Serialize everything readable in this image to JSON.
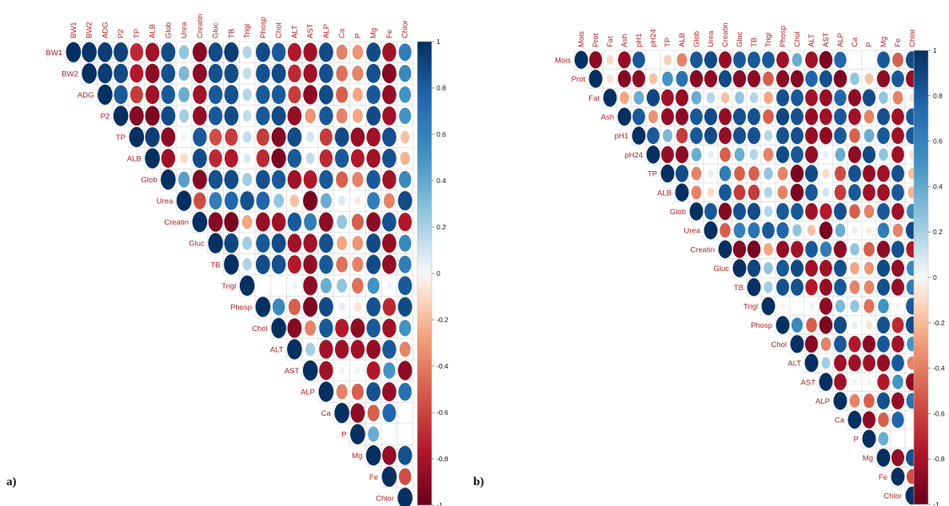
{
  "colors": {
    "negative": "#67001f",
    "neutral": "#ffffff",
    "positive": "#053061",
    "label": "#b22222"
  },
  "chart_data": [
    {
      "type": "heatmap",
      "panel_label": "a)",
      "variables": [
        "BW1",
        "BW2",
        "ADG",
        "P2",
        "TP",
        "ALB",
        "Glob",
        "Urea",
        "Creatin",
        "Gluc",
        "TB",
        "Trigl",
        "Phosp",
        "Chol",
        "ALT",
        "AST",
        "ALP",
        "Ca",
        "P",
        "Mg",
        "Fe",
        "Chlor"
      ],
      "triangle": "upper",
      "legend_position": "right",
      "colorbar_ticks": [
        1,
        0.8,
        0.6,
        0.4,
        0.2,
        0,
        -0.2,
        -0.4,
        -0.6,
        -0.8,
        -1
      ],
      "colorbar_range": [
        -1,
        1
      ],
      "correlations": [
        [
          1,
          0.98,
          0.95,
          0.93,
          -0.75,
          -0.85,
          0.9,
          0.4,
          -0.92,
          0.9,
          0.95,
          0.3,
          0.9,
          0.85,
          -0.8,
          -0.85,
          0.9,
          -0.5,
          -0.45,
          0.9,
          -0.85,
          0.7
        ],
        [
          1,
          0.95,
          0.9,
          -0.8,
          -0.9,
          0.88,
          0.45,
          -0.9,
          0.88,
          0.9,
          0.25,
          0.88,
          0.9,
          -0.75,
          -0.85,
          0.88,
          -0.55,
          -0.5,
          0.88,
          -0.92,
          0.65
        ],
        [
          1,
          0.85,
          -0.7,
          -0.85,
          0.85,
          0.5,
          -0.85,
          0.85,
          0.88,
          0.3,
          0.85,
          0.85,
          -0.7,
          -0.9,
          0.9,
          -0.6,
          -0.4,
          0.85,
          -0.88,
          0.6
        ],
        [
          1,
          -0.92,
          -0.95,
          0.9,
          0.35,
          -0.88,
          0.85,
          0.9,
          0.25,
          0.85,
          0.9,
          -0.88,
          -0.45,
          0.85,
          -0.5,
          -0.4,
          0.9,
          -0.85,
          0.6
        ],
        [
          1,
          0.95,
          -0.9,
          0.05,
          0.85,
          -0.65,
          -0.7,
          0.25,
          -0.7,
          -0.92,
          0.9,
          0.2,
          -0.7,
          0.9,
          -0.88,
          -0.85,
          0.88,
          -0.3
        ],
        [
          1,
          -0.85,
          -0.2,
          0.9,
          -0.75,
          -0.8,
          0.15,
          -0.75,
          -0.95,
          0.85,
          0.25,
          -0.75,
          0.85,
          -0.8,
          -0.85,
          0.88,
          -0.35
        ],
        [
          1,
          0.55,
          -0.92,
          0.88,
          0.9,
          0.35,
          0.88,
          0.85,
          -0.85,
          -0.8,
          0.85,
          -0.6,
          -0.5,
          0.85,
          -0.85,
          0.65
        ],
        [
          1,
          -0.65,
          0.7,
          0.8,
          0.88,
          0.8,
          0.4,
          -0.3,
          -0.95,
          0.5,
          0.15,
          -0.1,
          0.7,
          -0.5,
          0.9
        ],
        [
          1,
          -0.92,
          -0.95,
          -0.4,
          -0.88,
          -0.85,
          0.85,
          0.7,
          -0.9,
          0.4,
          -0.6,
          -0.9,
          0.88,
          -0.8
        ],
        [
          1,
          0.92,
          0.35,
          0.85,
          0.9,
          -0.85,
          -0.85,
          0.88,
          -0.4,
          -0.45,
          0.9,
          -0.88,
          0.65
        ],
        [
          1,
          0.3,
          0.9,
          0.88,
          -0.8,
          -0.88,
          0.85,
          -0.55,
          -0.5,
          0.9,
          -0.88,
          0.7
        ],
        [
          1,
          0,
          0,
          0.05,
          -0.9,
          0.5,
          0.4,
          -0.55,
          0.6,
          0.05,
          0.85
        ],
        [
          1,
          0.65,
          -0.6,
          -0.95,
          0.9,
          0.1,
          -0.15,
          0.88,
          -0.75,
          0.9
        ],
        [
          1,
          -0.92,
          -0.5,
          0.85,
          -0.8,
          -0.9,
          0.85,
          -0.85,
          0.6
        ],
        [
          1,
          0.35,
          -0.85,
          -0.85,
          -0.85,
          -0.88,
          0.85,
          -0.5
        ],
        [
          1,
          -0.85,
          0.05,
          0.05,
          -0.8,
          0.6,
          -0.9
        ],
        [
          1,
          -0.5,
          -0.6,
          0.88,
          -0.88,
          0.75
        ],
        [
          1,
          -0.9,
          -0.6,
          0.8,
          0
        ],
        [
          1,
          0.5,
          0,
          0
        ],
        [
          1,
          -0.88,
          0.88
        ],
        [
          1,
          -0.65
        ],
        [
          1
        ]
      ]
    },
    {
      "type": "heatmap",
      "panel_label": "b)",
      "variables": [
        "Mois",
        "Prot",
        "Fat",
        "Ash",
        "pH1",
        "pH24",
        "TP",
        "ALB",
        "Glob",
        "Urea",
        "Creatin",
        "Gluc",
        "TB",
        "Trigl",
        "Phosp",
        "Chol",
        "ALT",
        "AST",
        "ALP",
        "Ca",
        "P",
        "Mg",
        "Fe",
        "Chlor"
      ],
      "triangle": "upper",
      "legend_position": "right",
      "colorbar_ticks": [
        1,
        0.8,
        0.6,
        0.4,
        0.2,
        0,
        -0.2,
        -0.4,
        -0.6,
        -0.8,
        -1
      ],
      "colorbar_range": [
        -1,
        1
      ],
      "correlations": [
        [
          1,
          -0.9,
          -0.2,
          -0.88,
          0.85,
          0,
          -0.25,
          -0.5,
          0.85,
          0.9,
          -0.88,
          0.85,
          0.85,
          0.85,
          -0.85,
          0.5,
          -0.85,
          -0.95,
          0.8,
          0,
          0,
          0.85,
          -0.6,
          0.9
        ],
        [
          1,
          -0.15,
          -0.92,
          -0.9,
          -0.3,
          0.6,
          0.75,
          -0.92,
          -0.9,
          0.9,
          -0.92,
          -0.9,
          -0.6,
          -0.9,
          -0.92,
          0.8,
          0.88,
          -0.95,
          0.4,
          -0.3,
          -0.9,
          0.85,
          -0.88
        ],
        [
          1,
          -0.4,
          0.5,
          0.92,
          -0.85,
          -0.88,
          0.5,
          0.3,
          -0.3,
          0.4,
          0.3,
          -0.4,
          0.88,
          0.85,
          -0.85,
          -0.88,
          0.8,
          -0.9,
          0.9,
          0.4,
          -0.5,
          -0.15
        ],
        [
          1,
          0.85,
          -0.45,
          -0.88,
          -0.9,
          0.85,
          0.9,
          -0.88,
          0.88,
          0.88,
          -0.6,
          0.92,
          0.88,
          -0.88,
          -0.85,
          0.85,
          -0.85,
          -0.5,
          0.88,
          -0.85,
          0.85
        ],
        [
          1,
          0.85,
          0.45,
          -0.7,
          0.85,
          0.9,
          -0.88,
          0.88,
          0.88,
          0.3,
          0.88,
          0.88,
          -0.88,
          -0.9,
          0.85,
          -0.6,
          0.5,
          0.85,
          -0.85,
          0.85
        ],
        [
          1,
          -0.88,
          -0.9,
          0.5,
          0.1,
          -0.6,
          0.5,
          0.3,
          -0.5,
          0.9,
          0.85,
          -0.88,
          0.1,
          0.5,
          -0.9,
          0.9,
          0.4,
          -0.85,
          -0.15
        ],
        [
          1,
          0.9,
          -0.5,
          0.1,
          0.7,
          -0.6,
          -0.6,
          0.4,
          -0.5,
          -0.95,
          0.9,
          -0.2,
          -0.65,
          0.88,
          -0.88,
          -0.85,
          0.88,
          -0.3
        ],
        [
          1,
          -0.5,
          -0.2,
          0.85,
          -0.7,
          -0.7,
          0.3,
          -0.5,
          -0.95,
          0.85,
          0.2,
          -0.7,
          0.85,
          -0.85,
          -0.85,
          0.85,
          -0.35
        ],
        [
          1,
          0.85,
          -0.92,
          0.88,
          0.9,
          0.3,
          0.85,
          0.85,
          -0.85,
          -0.8,
          0.88,
          -0.6,
          -0.5,
          0.85,
          -0.85,
          0.65
        ],
        [
          1,
          -0.6,
          0.7,
          0.75,
          0.85,
          0.8,
          0.4,
          -0.3,
          -0.95,
          0.5,
          0.1,
          -0.1,
          0.7,
          -0.5,
          0.9
        ],
        [
          1,
          -0.92,
          -0.95,
          -0.4,
          -0.88,
          -0.85,
          0.85,
          0.7,
          -0.9,
          0.4,
          -0.6,
          -0.9,
          0.88,
          -0.8
        ],
        [
          1,
          0.92,
          0.4,
          0.85,
          0.9,
          -0.85,
          -0.85,
          0.88,
          -0.4,
          -0.45,
          0.9,
          -0.88,
          0.65
        ],
        [
          1,
          0.35,
          0.88,
          0.88,
          -0.8,
          -0.88,
          0.85,
          -0.5,
          -0.5,
          0.88,
          -0.88,
          0.7
        ],
        [
          1,
          0.05,
          0,
          0.05,
          -0.9,
          0.45,
          0.4,
          -0.55,
          0.6,
          0.05,
          0.85
        ],
        [
          1,
          0.65,
          -0.6,
          -0.95,
          0.9,
          0.1,
          -0.15,
          0.88,
          -0.75,
          0.9
        ],
        [
          1,
          -0.92,
          -0.5,
          0.85,
          -0.8,
          -0.9,
          0.85,
          -0.85,
          0.6
        ],
        [
          1,
          0.35,
          -0.85,
          -0.85,
          -0.85,
          -0.88,
          0.85,
          -0.5
        ],
        [
          1,
          -0.85,
          0.05,
          0.05,
          -0.8,
          0.6,
          -0.9
        ],
        [
          1,
          -0.5,
          -0.6,
          0.88,
          -0.88,
          0.75
        ],
        [
          1,
          -0.9,
          -0.6,
          0.8,
          0
        ],
        [
          1,
          0.5,
          0,
          0
        ],
        [
          1,
          -0.88,
          0.88
        ],
        [
          1,
          -0.65
        ],
        [
          1
        ]
      ]
    }
  ]
}
